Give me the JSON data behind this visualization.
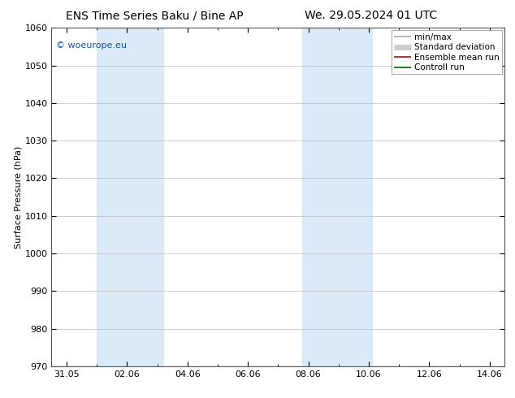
{
  "title_left": "ENS Time Series Baku / Bine AP",
  "title_right": "We. 29.05.2024 01 UTC",
  "ylabel": "Surface Pressure (hPa)",
  "ylim": [
    970,
    1060
  ],
  "yticks": [
    970,
    980,
    990,
    1000,
    1010,
    1020,
    1030,
    1040,
    1050,
    1060
  ],
  "xtick_labels": [
    "31.05",
    "02.06",
    "04.06",
    "06.06",
    "08.06",
    "10.06",
    "12.06",
    "14.06"
  ],
  "xtick_positions": [
    0,
    2,
    4,
    6,
    8,
    10,
    12,
    14
  ],
  "xlim": [
    -0.5,
    14.5
  ],
  "shaded_bands": [
    {
      "x_start": 1.0,
      "x_end": 3.2,
      "color": "#daeaf8"
    },
    {
      "x_start": 7.8,
      "x_end": 10.1,
      "color": "#daeaf8"
    }
  ],
  "legend_entries": [
    {
      "label": "min/max",
      "color": "#aaaaaa",
      "lw": 1.2
    },
    {
      "label": "Standard deviation",
      "color": "#cccccc",
      "lw": 5
    },
    {
      "label": "Ensemble mean run",
      "color": "#cc0000",
      "lw": 1.2
    },
    {
      "label": "Controll run",
      "color": "#006600",
      "lw": 1.2
    }
  ],
  "watermark": "© woeurope.eu",
  "watermark_color": "#1155aa",
  "background_color": "#ffffff",
  "plot_bg_color": "#ffffff",
  "grid_color": "#bbbbbb",
  "title_fontsize": 10,
  "axis_label_fontsize": 8,
  "tick_fontsize": 8,
  "legend_fontsize": 7.5,
  "watermark_fontsize": 8
}
